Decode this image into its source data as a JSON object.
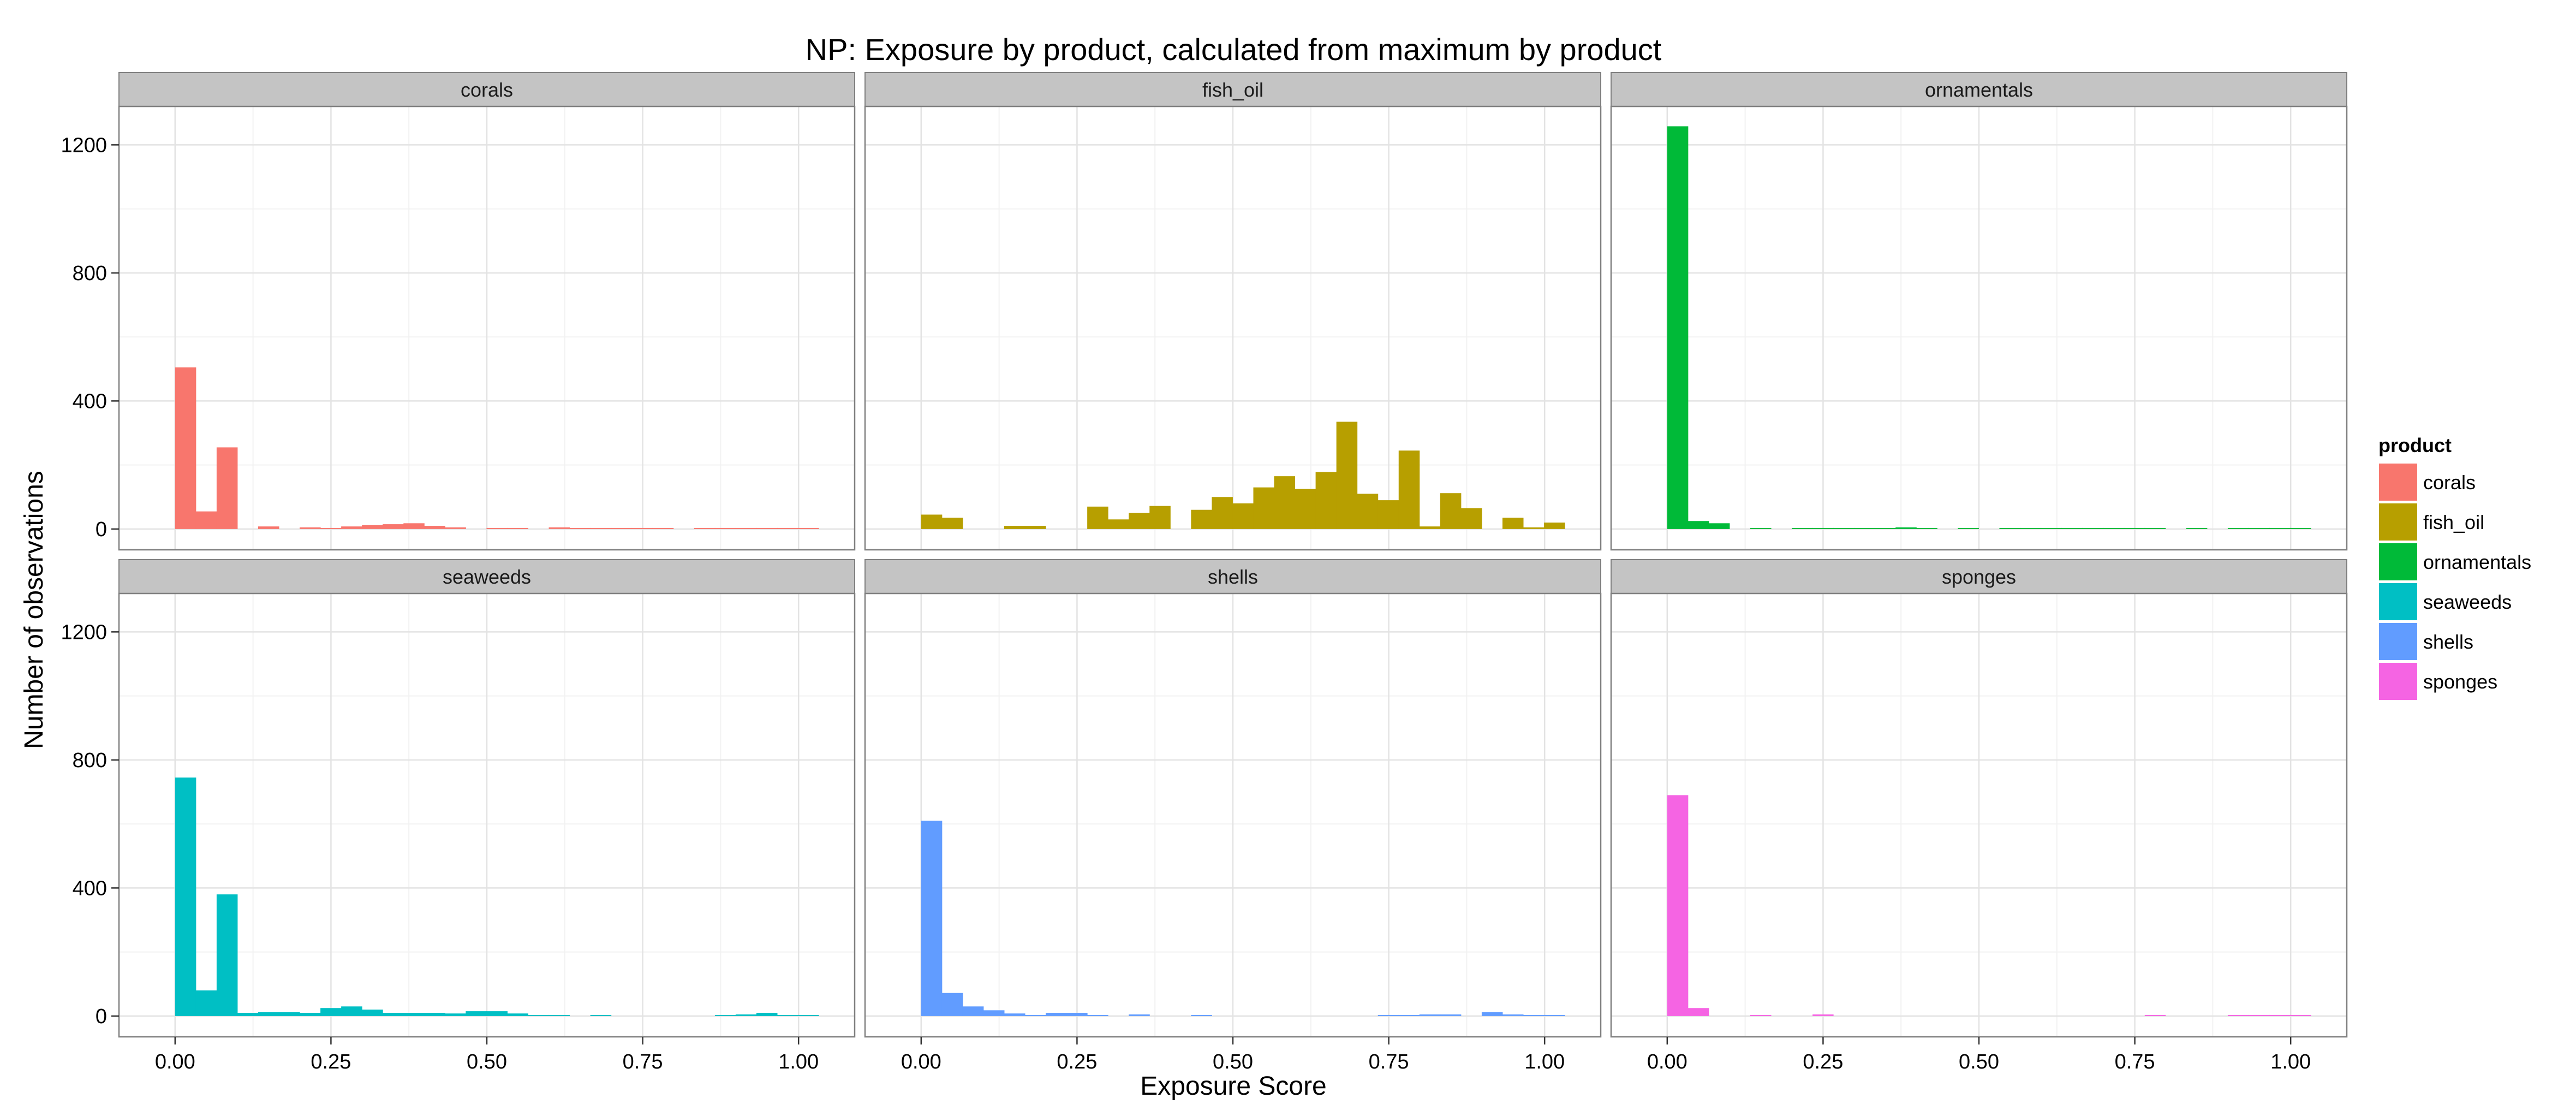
{
  "chart_data": {
    "type": "bar",
    "title": "NP: Exposure by product, calculated from maximum by product",
    "xlabel": "Exposure Score",
    "ylabel": "Number of observations",
    "xlim": [
      -0.09,
      1.09
    ],
    "ylim": [
      -65,
      1320
    ],
    "x_ticks": [
      0,
      0.25,
      0.5,
      0.75,
      1.0
    ],
    "x_tick_labels": [
      "0.00",
      "0.25",
      "0.50",
      "0.75",
      "1.00"
    ],
    "y_ticks": [
      0,
      400,
      800,
      1200
    ],
    "y_tick_labels": [
      "0",
      "400",
      "800",
      "1200"
    ],
    "grid": true,
    "bin_width": 0.0333,
    "bin_start": 0,
    "legend": {
      "title": "product",
      "position": "right",
      "entries": [
        "corals",
        "fish_oil",
        "ornamentals",
        "seaweeds",
        "shells",
        "sponges"
      ]
    },
    "colors": {
      "corals": "#F8766D",
      "fish_oil": "#B79F00",
      "ornamentals": "#00BA38",
      "seaweeds": "#00BFC4",
      "shells": "#619CFF",
      "sponges": "#F564E3"
    },
    "series": [
      {
        "name": "corals",
        "values": [
          505,
          55,
          255,
          0,
          8,
          0,
          5,
          3,
          8,
          12,
          15,
          18,
          10,
          5,
          0,
          3,
          3,
          0,
          5,
          3,
          3,
          3,
          3,
          3,
          0,
          2,
          2,
          2,
          2,
          2,
          3
        ]
      },
      {
        "name": "fish_oil",
        "values": [
          45,
          35,
          0,
          0,
          10,
          10,
          0,
          0,
          70,
          30,
          50,
          72,
          0,
          60,
          100,
          80,
          130,
          165,
          125,
          178,
          335,
          110,
          90,
          245,
          8,
          112,
          65,
          0,
          35,
          5,
          20
        ]
      },
      {
        "name": "ornamentals",
        "values": [
          1258,
          25,
          18,
          0,
          2,
          0,
          2,
          2,
          2,
          2,
          3,
          5,
          3,
          0,
          2,
          0,
          2,
          2,
          2,
          2,
          3,
          2,
          2,
          2,
          0,
          2,
          0,
          2,
          2,
          2,
          2
        ]
      },
      {
        "name": "seaweeds",
        "values": [
          745,
          80,
          380,
          10,
          12,
          12,
          10,
          25,
          30,
          20,
          10,
          10,
          10,
          8,
          15,
          15,
          8,
          3,
          3,
          0,
          3,
          0,
          0,
          0,
          0,
          0,
          3,
          5,
          10,
          3,
          3
        ]
      },
      {
        "name": "shells",
        "values": [
          610,
          72,
          30,
          18,
          8,
          3,
          10,
          10,
          3,
          0,
          5,
          0,
          0,
          3,
          0,
          0,
          0,
          0,
          0,
          0,
          0,
          0,
          3,
          3,
          5,
          5,
          0,
          12,
          5,
          3,
          3
        ]
      },
      {
        "name": "sponges",
        "values": [
          690,
          25,
          0,
          0,
          2,
          0,
          0,
          5,
          0,
          0,
          0,
          0,
          0,
          0,
          0,
          0,
          0,
          0,
          0,
          0,
          0,
          0,
          0,
          2,
          0,
          0,
          0,
          2,
          2,
          2,
          2
        ]
      }
    ]
  }
}
